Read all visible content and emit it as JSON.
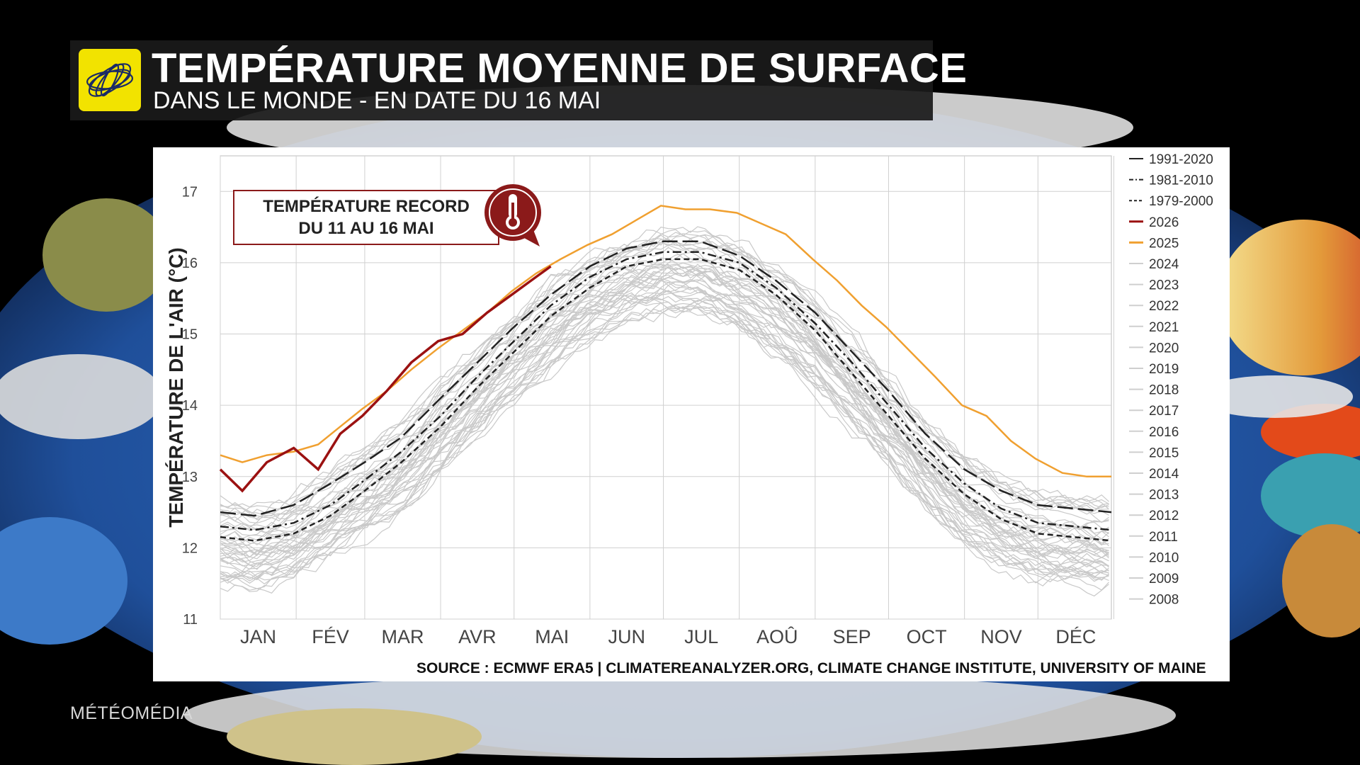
{
  "header": {
    "title": "TEMPÉRATURE MOYENNE DE SURFACE",
    "subtitle": "DANS LE MONDE - EN DATE DU 16 MAI",
    "logo_icon": "weather-network-swirl-icon"
  },
  "callout": {
    "line1": "TEMPÉRATURE RECORD",
    "line2": "DU 11 AU 16 MAI",
    "icon": "thermometer-icon"
  },
  "source": "SOURCE : ECMWF ERA5 | CLIMATEREANALYZER.ORG, CLIMATE CHANGE INSTITUTE, UNIVERSITY OF MAINE",
  "brand": "MÉTÉOMÉDIA",
  "colors": {
    "record_2026": "#9b1111",
    "year_2025": "#f0a030",
    "other_years": "#c8c8c8",
    "climatology": "#222222"
  },
  "chart_data": {
    "type": "line",
    "ylabel": "TEMPÉRATURE DE L'AIR (°C)",
    "xlabel": "",
    "ylim": [
      11,
      17.5
    ],
    "yticks": [
      "11",
      "12",
      "13",
      "14",
      "15",
      "16",
      "17"
    ],
    "months": [
      "JAN",
      "FÉV",
      "MAR",
      "AVR",
      "MAI",
      "JUN",
      "JUL",
      "AOÛ",
      "SEP",
      "OCT",
      "NOV",
      "DÉC"
    ],
    "legend_position": "right",
    "grid": true,
    "legend": [
      "1991-2020",
      "1981-2010",
      "1979-2000",
      "2026",
      "2025",
      "2024",
      "2023",
      "2022",
      "2021",
      "2020",
      "2019",
      "2018",
      "2017",
      "2016",
      "2015",
      "2014",
      "2013",
      "2012",
      "2011",
      "2010",
      "2009",
      "2008"
    ],
    "series": [
      {
        "name": "2026",
        "color": "#9b1111",
        "x": [
          1,
          10,
          20,
          31,
          41,
          50,
          59,
          69,
          79,
          90,
          100,
          110,
          120,
          130,
          136
        ],
        "y": [
          13.1,
          12.8,
          13.2,
          13.4,
          13.1,
          13.6,
          13.85,
          14.2,
          14.6,
          14.9,
          15.0,
          15.3,
          15.55,
          15.8,
          15.95
        ]
      },
      {
        "name": "2025",
        "color": "#f0a030",
        "x": [
          1,
          10,
          20,
          31,
          41,
          50,
          59,
          69,
          79,
          90,
          100,
          110,
          120,
          130,
          140,
          151,
          161,
          171,
          181,
          191,
          201,
          212,
          222,
          232,
          243,
          253,
          263,
          273,
          283,
          293,
          304,
          314,
          324,
          334,
          345,
          355,
          365
        ],
        "y": [
          13.3,
          13.2,
          13.3,
          13.35,
          13.45,
          13.7,
          13.95,
          14.2,
          14.5,
          14.8,
          15.05,
          15.3,
          15.6,
          15.85,
          16.05,
          16.25,
          16.4,
          16.6,
          16.8,
          16.75,
          16.75,
          16.7,
          16.55,
          16.4,
          16.05,
          15.75,
          15.4,
          15.1,
          14.75,
          14.4,
          14.0,
          13.85,
          13.5,
          13.25,
          13.05,
          13.0,
          13.0
        ]
      },
      {
        "name": "1991-2020",
        "x": [
          1,
          15,
          31,
          46,
          60,
          75,
          91,
          106,
          121,
          136,
          152,
          167,
          182,
          197,
          213,
          228,
          244,
          259,
          274,
          289,
          305,
          320,
          335,
          350,
          365
        ],
        "y": [
          12.5,
          12.45,
          12.6,
          12.9,
          13.2,
          13.55,
          14.1,
          14.6,
          15.1,
          15.55,
          15.95,
          16.2,
          16.3,
          16.3,
          16.1,
          15.75,
          15.3,
          14.75,
          14.2,
          13.6,
          13.1,
          12.8,
          12.6,
          12.55,
          12.5
        ]
      },
      {
        "name": "1981-2010",
        "x": [
          1,
          15,
          31,
          46,
          60,
          75,
          91,
          106,
          121,
          136,
          152,
          167,
          182,
          197,
          213,
          228,
          244,
          259,
          274,
          289,
          305,
          320,
          335,
          350,
          365
        ],
        "y": [
          12.3,
          12.25,
          12.35,
          12.6,
          12.95,
          13.35,
          13.85,
          14.4,
          14.9,
          15.4,
          15.8,
          16.05,
          16.15,
          16.15,
          16.0,
          15.65,
          15.15,
          14.6,
          14.0,
          13.4,
          12.9,
          12.55,
          12.35,
          12.3,
          12.25
        ]
      },
      {
        "name": "1979-2000",
        "x": [
          1,
          15,
          31,
          46,
          60,
          75,
          91,
          106,
          121,
          136,
          152,
          167,
          182,
          197,
          213,
          228,
          244,
          259,
          274,
          289,
          305,
          320,
          335,
          350,
          365
        ],
        "y": [
          12.15,
          12.1,
          12.2,
          12.45,
          12.8,
          13.2,
          13.7,
          14.25,
          14.75,
          15.25,
          15.65,
          15.95,
          16.05,
          16.05,
          15.9,
          15.55,
          15.05,
          14.45,
          13.85,
          13.25,
          12.75,
          12.4,
          12.2,
          12.15,
          12.1
        ]
      }
    ]
  }
}
